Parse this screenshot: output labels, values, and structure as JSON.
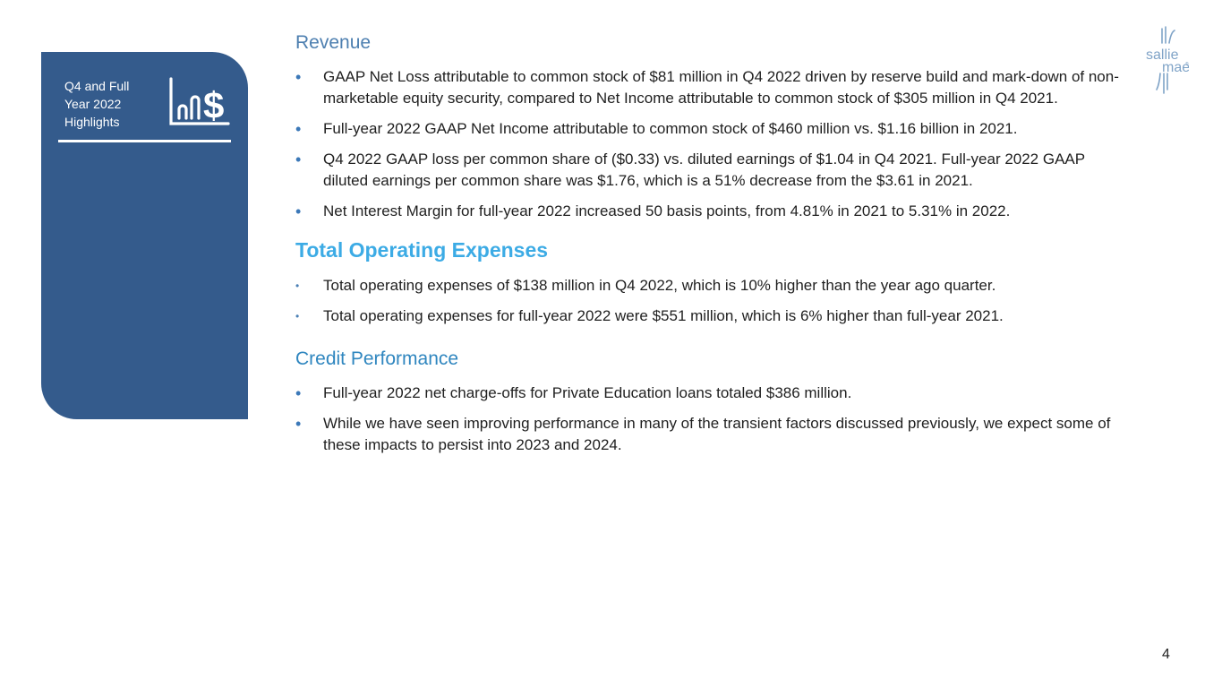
{
  "sidebar": {
    "title": "Q4 and Full\nYear 2022\nHighlights",
    "icon": "bar-chart-dollar-icon",
    "background": "#345b8c"
  },
  "logo": {
    "line1": "sallie",
    "line2": "mae",
    "mark": "®"
  },
  "sections": {
    "revenue": {
      "heading": "Revenue",
      "bullets": [
        "GAAP Net Loss attributable to common stock of $81 million in Q4 2022 driven by reserve build and mark-down of non-marketable equity security, compared to Net Income attributable to common stock of $305 million in Q4 2021.",
        "Full-year 2022 GAAP Net Income attributable to common stock of $460 million vs. $1.16 billion in 2021.",
        "Q4 2022 GAAP loss per common share of ($0.33) vs. diluted earnings of $1.04 in Q4 2021. Full-year 2022 GAAP diluted earnings per common share was $1.76, which is a 51% decrease from the $3.61 in 2021.",
        "Net Interest Margin for full-year 2022 increased 50 basis points, from 4.81% in 2021 to 5.31% in 2022."
      ]
    },
    "opex": {
      "heading": "Total Operating Expenses",
      "bullets": [
        "Total operating expenses of $138 million in Q4 2022, which is 10% higher than the year ago quarter.",
        "Total operating expenses for full-year 2022 were $551 million, which is 6% higher than full-year 2021."
      ]
    },
    "credit": {
      "heading": "Credit Performance",
      "bullets": [
        "Full-year 2022 net charge-offs for Private Education loans totaled $386 million.",
        "While we have seen improving performance in many of the transient factors discussed previously, we expect some of these impacts to persist into 2023 and 2024."
      ]
    }
  },
  "page_number": "4"
}
